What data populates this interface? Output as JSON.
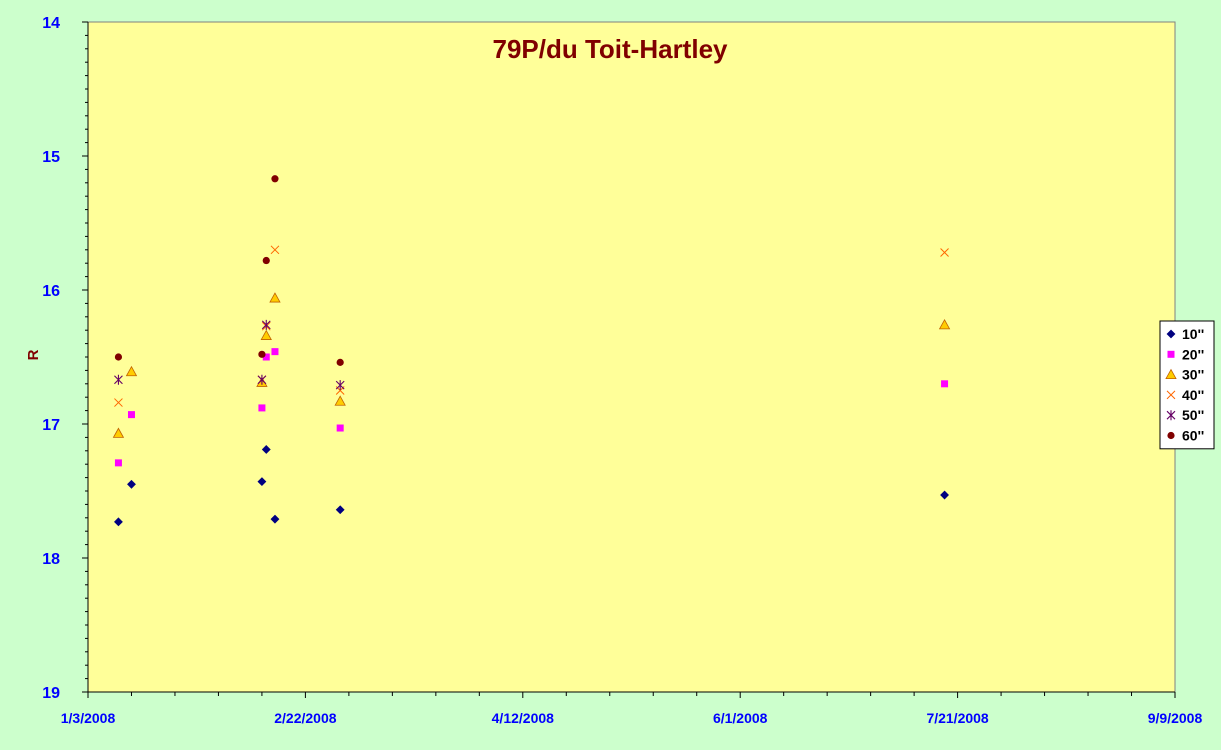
{
  "chart_data": {
    "type": "scatter",
    "title": "79P/du Toit-Hartley",
    "xlabel": "",
    "ylabel": "R",
    "x_axis": {
      "type": "date",
      "min": "2008-01-03",
      "max": "2008-09-09",
      "major_step_days": 50,
      "minor_step_days": 10,
      "tick_labels": [
        "1/3/2008",
        "2/22/2008",
        "4/12/2008",
        "6/1/2008",
        "7/21/2008",
        "9/9/2008"
      ]
    },
    "y_axis": {
      "min": 14,
      "max": 19,
      "inverted": true,
      "major_step": 1,
      "minor_step": 0.1,
      "tick_labels": [
        "14",
        "15",
        "16",
        "17",
        "18",
        "19"
      ]
    },
    "grid": false,
    "legend_position": "right",
    "colors": {
      "page_background": "#ccffcc",
      "plot_background": "#ffff99",
      "title": "#800000",
      "tick_labels": "#0000ff"
    },
    "series": [
      {
        "name": "10''",
        "marker": "diamond",
        "color": "#000080",
        "points": [
          {
            "x": "2008-01-10",
            "y": 17.73
          },
          {
            "x": "2008-01-13",
            "y": 17.45
          },
          {
            "x": "2008-02-12",
            "y": 17.43
          },
          {
            "x": "2008-02-13",
            "y": 17.19
          },
          {
            "x": "2008-02-15",
            "y": 17.71
          },
          {
            "x": "2008-03-01",
            "y": 17.64
          },
          {
            "x": "2008-07-18",
            "y": 17.53
          }
        ]
      },
      {
        "name": "20''",
        "marker": "square",
        "color": "#ff00ff",
        "points": [
          {
            "x": "2008-01-10",
            "y": 17.29
          },
          {
            "x": "2008-01-13",
            "y": 16.93
          },
          {
            "x": "2008-02-12",
            "y": 16.88
          },
          {
            "x": "2008-02-13",
            "y": 16.5
          },
          {
            "x": "2008-02-15",
            "y": 16.46
          },
          {
            "x": "2008-03-01",
            "y": 17.03
          },
          {
            "x": "2008-07-18",
            "y": 16.7
          }
        ]
      },
      {
        "name": "30''",
        "marker": "triangle",
        "color": "#ffcc00",
        "points": [
          {
            "x": "2008-01-10",
            "y": 17.07
          },
          {
            "x": "2008-01-13",
            "y": 16.61
          },
          {
            "x": "2008-02-12",
            "y": 16.69
          },
          {
            "x": "2008-02-13",
            "y": 16.34
          },
          {
            "x": "2008-02-15",
            "y": 16.06
          },
          {
            "x": "2008-03-01",
            "y": 16.83
          },
          {
            "x": "2008-07-18",
            "y": 16.26
          }
        ]
      },
      {
        "name": "40''",
        "marker": "x",
        "color": "#ff6600",
        "points": [
          {
            "x": "2008-01-10",
            "y": 16.84
          },
          {
            "x": "2008-02-12",
            "y": 16.67
          },
          {
            "x": "2008-02-13",
            "y": 16.27
          },
          {
            "x": "2008-02-15",
            "y": 15.7
          },
          {
            "x": "2008-03-01",
            "y": 16.75
          },
          {
            "x": "2008-07-18",
            "y": 15.72
          }
        ]
      },
      {
        "name": "50''",
        "marker": "star",
        "color": "#660066",
        "points": [
          {
            "x": "2008-01-10",
            "y": 16.67
          },
          {
            "x": "2008-02-12",
            "y": 16.67
          },
          {
            "x": "2008-02-13",
            "y": 16.26
          },
          {
            "x": "2008-03-01",
            "y": 16.71
          }
        ]
      },
      {
        "name": "60''",
        "marker": "circle",
        "color": "#800000",
        "points": [
          {
            "x": "2008-01-10",
            "y": 16.5
          },
          {
            "x": "2008-02-12",
            "y": 16.48
          },
          {
            "x": "2008-02-13",
            "y": 15.78
          },
          {
            "x": "2008-02-15",
            "y": 15.17
          },
          {
            "x": "2008-03-01",
            "y": 16.54
          }
        ]
      }
    ]
  }
}
